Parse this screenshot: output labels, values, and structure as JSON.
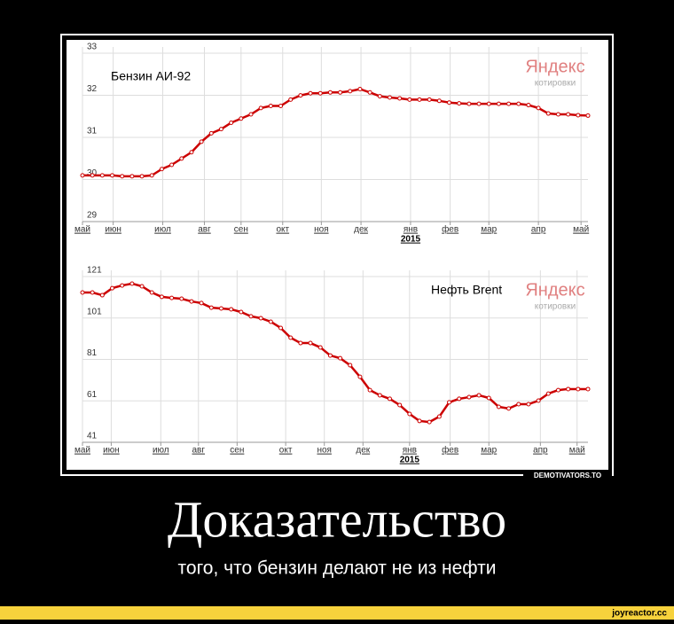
{
  "chart_data": [
    {
      "type": "line",
      "title": "Бензин АИ-92",
      "source": "Яндекс",
      "source_sub": "котировки",
      "x_year_label": "2015",
      "color": "#cc0000",
      "grid": true,
      "xlim": [
        0,
        51
      ],
      "ylim": [
        29,
        33
      ],
      "yticks": [
        29,
        30,
        31,
        32,
        33
      ],
      "xticks": [
        {
          "value": 0,
          "label": "май"
        },
        {
          "value": 3.1,
          "label": "июн"
        },
        {
          "value": 8.1,
          "label": "июл"
        },
        {
          "value": 12.3,
          "label": "авг"
        },
        {
          "value": 16.0,
          "label": "сен"
        },
        {
          "value": 20.2,
          "label": "окт"
        },
        {
          "value": 24.1,
          "label": "ноя"
        },
        {
          "value": 28.1,
          "label": "дек"
        },
        {
          "value": 33.1,
          "label": "янв"
        },
        {
          "value": 37.1,
          "label": "фев"
        },
        {
          "value": 41.0,
          "label": "мар"
        },
        {
          "value": 46.0,
          "label": "апр"
        },
        {
          "value": 50.3,
          "label": "май"
        }
      ],
      "values": [
        29.95,
        29.95,
        29.95,
        29.95,
        29.93,
        29.93,
        29.93,
        29.95,
        30.1,
        30.2,
        30.35,
        30.5,
        30.75,
        30.95,
        31.05,
        31.2,
        31.3,
        31.4,
        31.55,
        31.6,
        31.6,
        31.75,
        31.85,
        31.9,
        31.9,
        31.92,
        31.92,
        31.95,
        32.0,
        31.92,
        31.83,
        31.8,
        31.78,
        31.75,
        31.75,
        31.75,
        31.72,
        31.68,
        31.66,
        31.65,
        31.65,
        31.65,
        31.65,
        31.65,
        31.65,
        31.62,
        31.55,
        31.42,
        31.4,
        31.4,
        31.38,
        31.37
      ]
    },
    {
      "type": "line",
      "title": "Нефть Brent",
      "source": "Яндекс",
      "source_sub": "котировки",
      "x_year_label": "2015",
      "color": "#cc0000",
      "grid": true,
      "xlim": [
        0,
        51
      ],
      "ylim": [
        41,
        121
      ],
      "yticks": [
        41,
        61,
        81,
        101,
        121
      ],
      "xticks": [
        {
          "value": 0,
          "label": "май"
        },
        {
          "value": 2.9,
          "label": "июн"
        },
        {
          "value": 7.9,
          "label": "июл"
        },
        {
          "value": 11.7,
          "label": "авг"
        },
        {
          "value": 15.6,
          "label": "сен"
        },
        {
          "value": 20.5,
          "label": "окт"
        },
        {
          "value": 24.4,
          "label": "ноя"
        },
        {
          "value": 28.3,
          "label": "дек"
        },
        {
          "value": 33.0,
          "label": "янв"
        },
        {
          "value": 37.1,
          "label": "фев"
        },
        {
          "value": 41.0,
          "label": "мар"
        },
        {
          "value": 46.2,
          "label": "апр"
        },
        {
          "value": 49.9,
          "label": "май"
        }
      ],
      "values": [
        110.3,
        110.3,
        109.0,
        112.4,
        113.7,
        114.6,
        113.3,
        110.3,
        108.2,
        107.7,
        107.3,
        106.0,
        105.2,
        103.0,
        102.6,
        102.2,
        100.9,
        98.8,
        97.9,
        96.2,
        93.2,
        88.5,
        85.9,
        85.9,
        83.8,
        79.9,
        78.6,
        75.2,
        69.6,
        63.2,
        60.7,
        59.0,
        56.0,
        51.7,
        48.3,
        47.8,
        50.4,
        57.3,
        59.0,
        59.8,
        60.7,
        59.4,
        55.1,
        54.3,
        56.4,
        56.4,
        58.1,
        61.5,
        63.2,
        63.7,
        63.7,
        63.7
      ]
    }
  ],
  "poster": {
    "title": "Доказательство",
    "caption": "того, что бензин делают не из нефти",
    "watermark": "DEMOTIVATORS.TO",
    "site": "joyreactor.cc"
  }
}
